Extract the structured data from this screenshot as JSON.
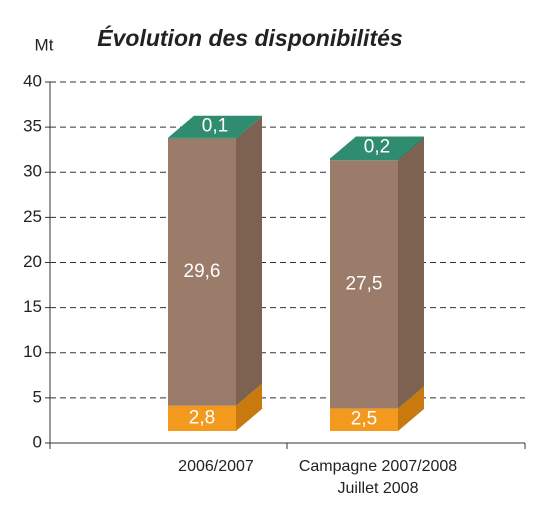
{
  "chart_data": {
    "type": "bar3d_stacked",
    "title": "Évolution des disponibilités",
    "y_label": "Mt",
    "categories": [
      "2006/2007",
      "Campagne 2007/2008\nJuillet 2008"
    ],
    "series": [
      {
        "color": "#f39a1e",
        "side_color": "#c97a0f",
        "values": [
          2.8,
          2.5
        ],
        "value_labels": [
          "2,8",
          "2,5"
        ]
      },
      {
        "color": "#9b7b69",
        "side_color": "#7d6151",
        "values": [
          29.6,
          27.5
        ],
        "value_labels": [
          "29,6",
          "27,5"
        ]
      },
      {
        "color": "#2f8c6f",
        "side_color": "#23705a",
        "values": [
          0.1,
          0.2
        ],
        "value_labels": [
          "0,1",
          "0,2"
        ]
      }
    ],
    "ylim": [
      0,
      40
    ],
    "yticks": [
      0,
      5,
      10,
      15,
      20,
      25,
      30,
      35,
      40
    ],
    "grid": true
  }
}
